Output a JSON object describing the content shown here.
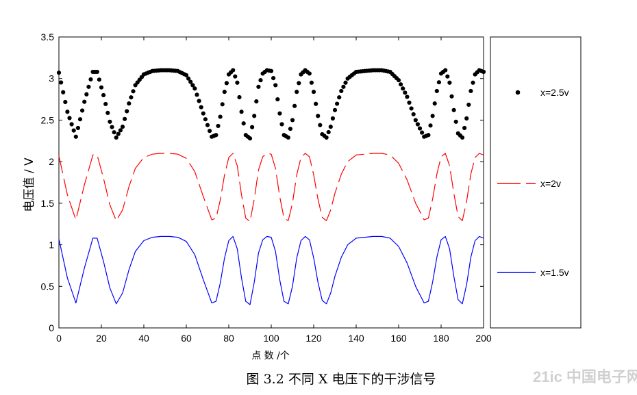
{
  "chart_data": {
    "type": "line",
    "xlabel": "点 数 /个",
    "ylabel": "电压值 / V",
    "caption": "图 3.2  不同 X 电压下的干涉信号",
    "xlim": [
      0,
      200
    ],
    "ylim": [
      0,
      3.5
    ],
    "xticks": [
      0,
      20,
      40,
      60,
      80,
      100,
      120,
      140,
      160,
      180,
      200
    ],
    "yticks": [
      0,
      0.5,
      1,
      1.5,
      2,
      2.5,
      3,
      3.5
    ],
    "ytick_labels": [
      "0",
      "0.5",
      "1",
      "1.5",
      "2",
      "2.5",
      "3",
      "3.5"
    ],
    "grid": false,
    "legend_position": "right, outside plot",
    "x": [
      0,
      4,
      8,
      12,
      16,
      18,
      21,
      24,
      27,
      30,
      33,
      36,
      40,
      44,
      48,
      52,
      56,
      60,
      64,
      68,
      72,
      74,
      76,
      78,
      80,
      82,
      84,
      86,
      88,
      90,
      92,
      94,
      96,
      98,
      100,
      102,
      104,
      106,
      108,
      110,
      112,
      114,
      116,
      118,
      120,
      122,
      124,
      126,
      128,
      130,
      133,
      136,
      140,
      144,
      148,
      152,
      156,
      160,
      164,
      168,
      172,
      174,
      176,
      178,
      180,
      182,
      184,
      186,
      188,
      190,
      192,
      194,
      196,
      198,
      200
    ],
    "series": [
      {
        "name": "x=2.5v",
        "style": "dots",
        "color": "#000000",
        "values": [
          3.07,
          2.6,
          2.3,
          2.72,
          3.08,
          3.08,
          2.8,
          2.48,
          2.29,
          2.42,
          2.7,
          2.92,
          3.05,
          3.09,
          3.1,
          3.1,
          3.09,
          3.04,
          2.88,
          2.58,
          2.3,
          2.32,
          2.54,
          2.84,
          3.05,
          3.1,
          2.95,
          2.6,
          2.32,
          2.28,
          2.55,
          2.9,
          3.06,
          3.1,
          3.09,
          2.92,
          2.58,
          2.32,
          2.29,
          2.5,
          2.84,
          3.05,
          3.1,
          3.06,
          2.84,
          2.55,
          2.33,
          2.29,
          2.42,
          2.62,
          2.85,
          3.0,
          3.08,
          3.09,
          3.1,
          3.1,
          3.08,
          2.98,
          2.78,
          2.5,
          2.3,
          2.32,
          2.55,
          2.85,
          3.06,
          3.1,
          2.95,
          2.62,
          2.34,
          2.29,
          2.52,
          2.85,
          3.05,
          3.1,
          3.08
        ]
      },
      {
        "name": "x=2v",
        "style": "dashed",
        "color": "#ff0000",
        "values": [
          2.07,
          1.6,
          1.3,
          1.72,
          2.08,
          2.08,
          1.8,
          1.48,
          1.29,
          1.42,
          1.7,
          1.92,
          2.05,
          2.09,
          2.1,
          2.1,
          2.09,
          2.04,
          1.88,
          1.58,
          1.3,
          1.32,
          1.54,
          1.84,
          2.05,
          2.1,
          1.95,
          1.6,
          1.32,
          1.28,
          1.55,
          1.9,
          2.06,
          2.1,
          2.09,
          1.92,
          1.58,
          1.32,
          1.29,
          1.5,
          1.84,
          2.05,
          2.1,
          2.06,
          1.84,
          1.55,
          1.33,
          1.29,
          1.42,
          1.62,
          1.85,
          2.0,
          2.08,
          2.09,
          2.1,
          2.1,
          2.08,
          1.98,
          1.78,
          1.5,
          1.3,
          1.32,
          1.55,
          1.85,
          2.06,
          2.1,
          1.95,
          1.62,
          1.34,
          1.29,
          1.52,
          1.85,
          2.05,
          2.1,
          2.08
        ]
      },
      {
        "name": "x=1.5v",
        "style": "solid",
        "color": "#0000ff",
        "values": [
          1.07,
          0.6,
          0.3,
          0.72,
          1.08,
          1.08,
          0.8,
          0.48,
          0.29,
          0.42,
          0.7,
          0.92,
          1.05,
          1.09,
          1.1,
          1.1,
          1.09,
          1.04,
          0.88,
          0.58,
          0.3,
          0.32,
          0.54,
          0.84,
          1.05,
          1.1,
          0.95,
          0.6,
          0.32,
          0.28,
          0.55,
          0.9,
          1.06,
          1.1,
          1.09,
          0.92,
          0.58,
          0.32,
          0.29,
          0.5,
          0.84,
          1.05,
          1.1,
          1.06,
          0.84,
          0.55,
          0.33,
          0.29,
          0.42,
          0.62,
          0.85,
          1.0,
          1.08,
          1.09,
          1.1,
          1.1,
          1.08,
          0.98,
          0.78,
          0.5,
          0.3,
          0.32,
          0.55,
          0.85,
          1.06,
          1.1,
          0.95,
          0.62,
          0.34,
          0.29,
          0.52,
          0.85,
          1.05,
          1.1,
          1.08
        ]
      }
    ]
  },
  "watermark": "21ic 中国电子网"
}
